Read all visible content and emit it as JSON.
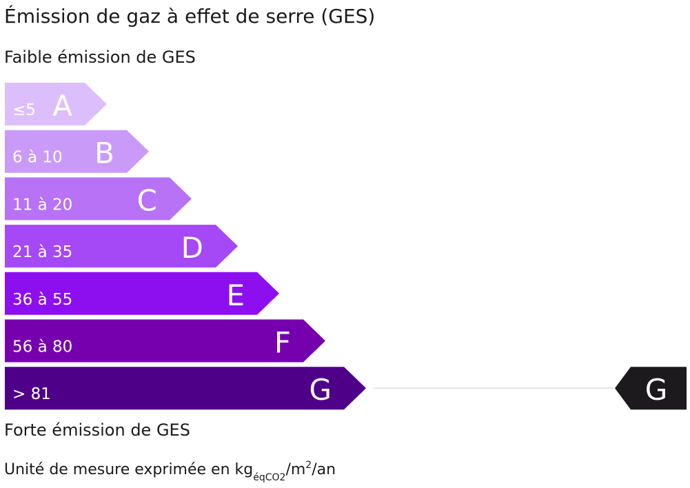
{
  "title": "Émission de gaz à effet de serre (GES)",
  "top_label": "Faible émission de GES",
  "bottom_label": "Forte émission de GES",
  "classes": [
    {
      "range": "≤5",
      "letter": "A",
      "color": "#dcbefc"
    },
    {
      "range": "6 à 10",
      "letter": "B",
      "color": "#ca9af8"
    },
    {
      "range": "11 à 20",
      "letter": "C",
      "color": "#b872f6"
    },
    {
      "range": "21 à 35",
      "letter": "D",
      "color": "#a548f5"
    },
    {
      "range": "36 à 55",
      "letter": "E",
      "color": "#8d0ff0"
    },
    {
      "range": "56 à 80",
      "letter": "F",
      "color": "#7600ae"
    },
    {
      "range": "> 81",
      "letter": "G",
      "color": "#4f0088"
    }
  ],
  "indicator": {
    "letter": "G",
    "color": "#1c1a1c"
  },
  "unit": {
    "text": "Unité de mesure exprimée en kg",
    "subscript": "éqCO2",
    "middle": "/m",
    "superscript": "2",
    "end": "/an"
  }
}
